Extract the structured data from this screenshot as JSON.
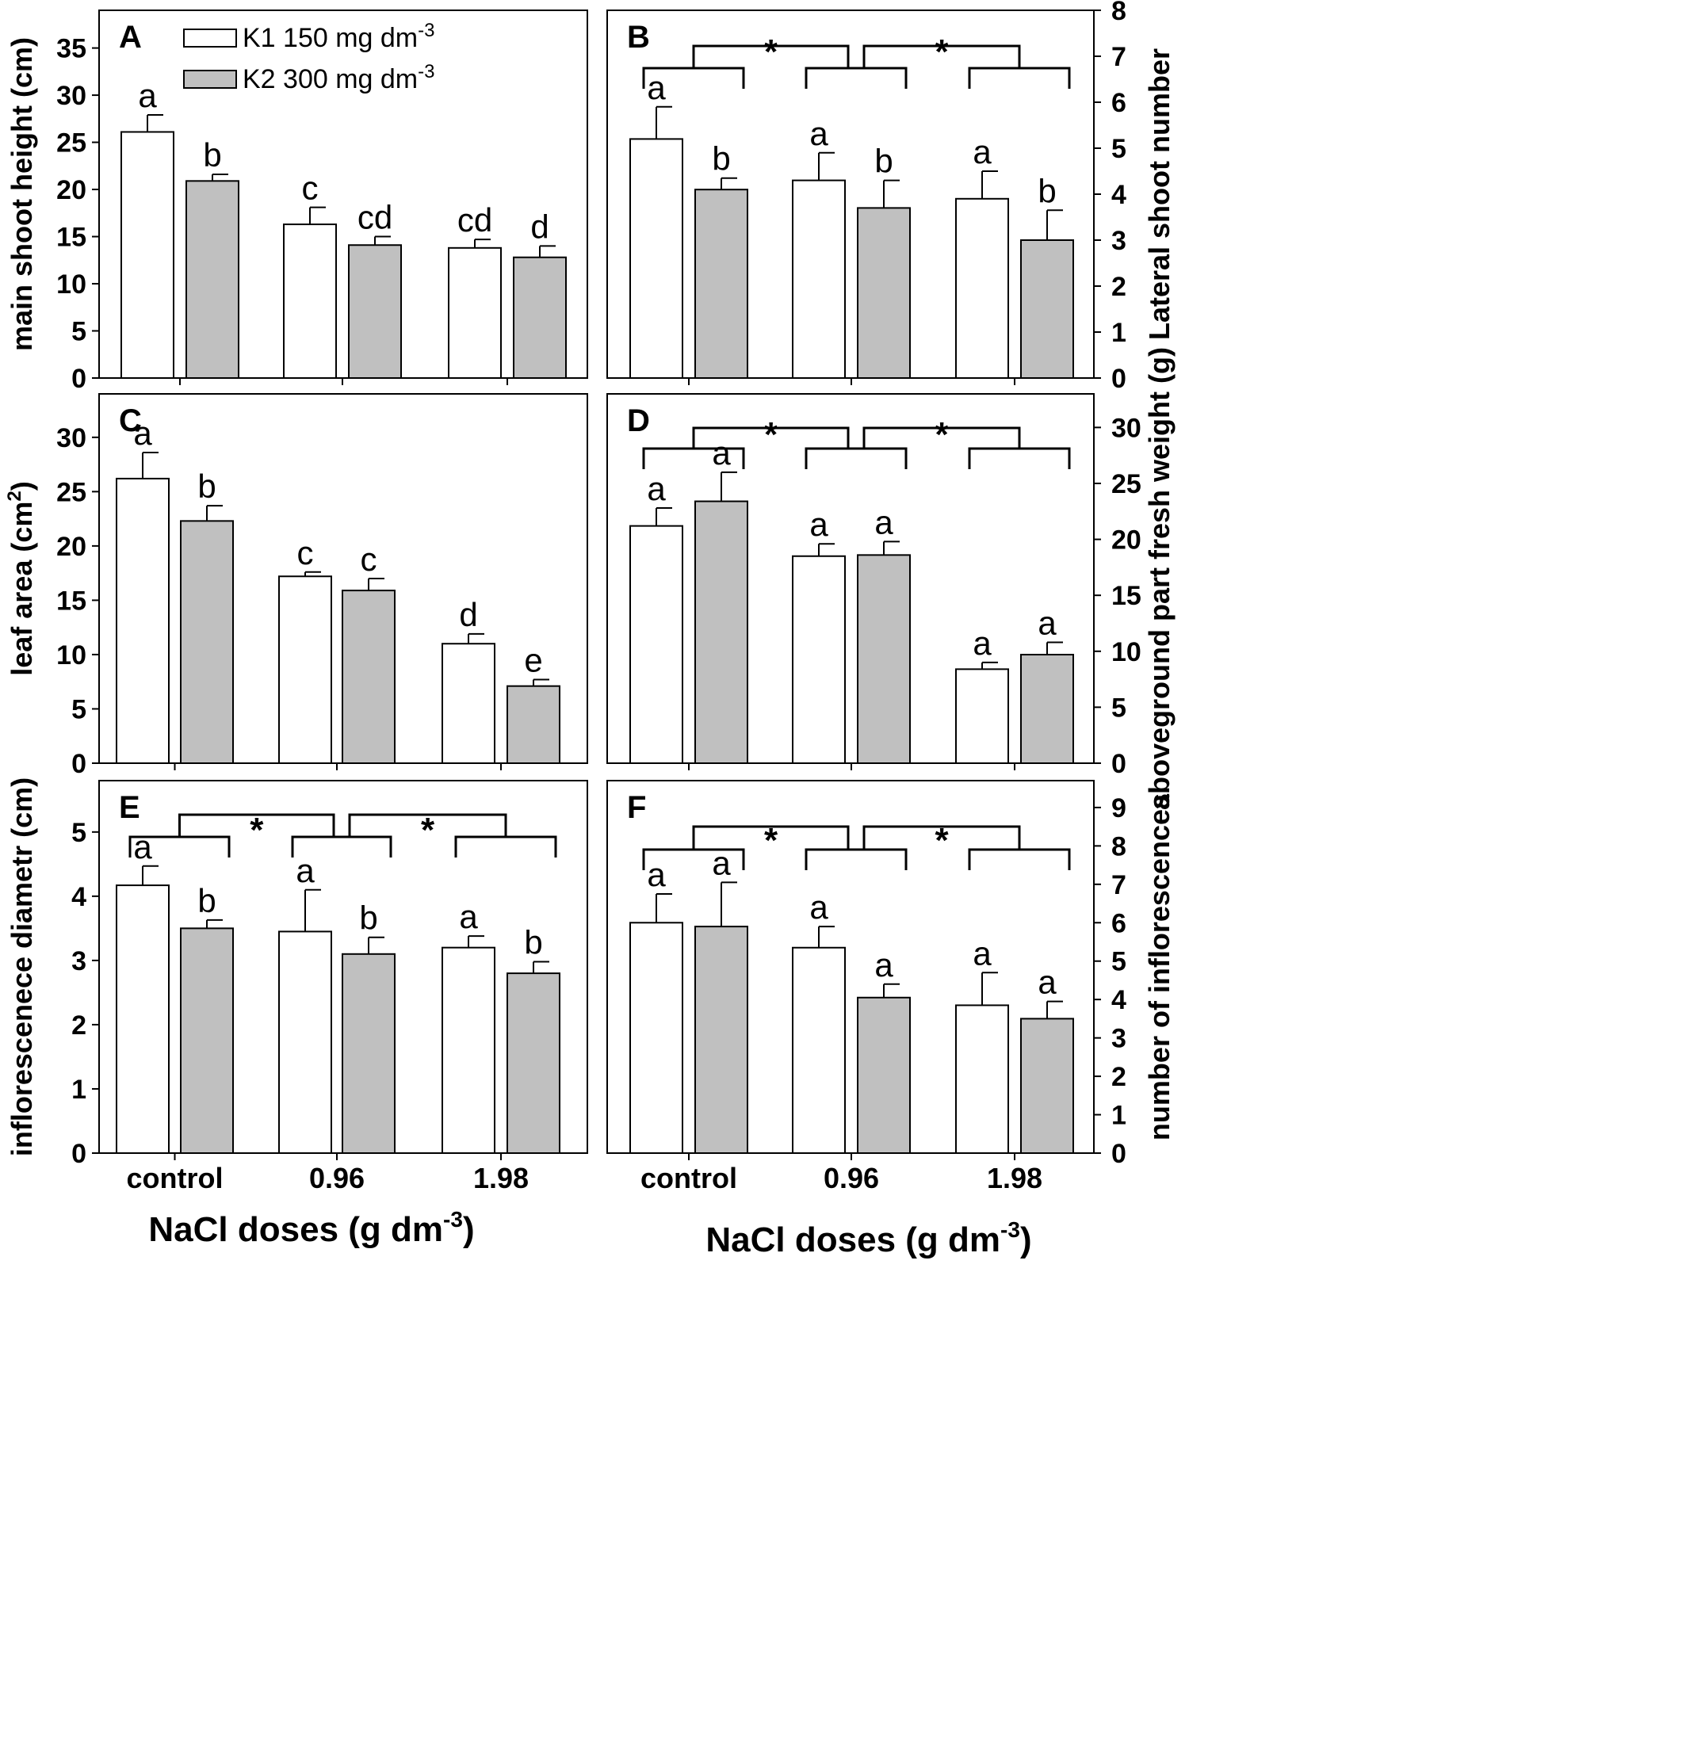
{
  "chart_data": [
    {
      "panel": "A",
      "type": "bar",
      "categories": [
        "control",
        "0.96",
        "1.98"
      ],
      "series": [
        {
          "name": "K1",
          "values": [
            26.1,
            16.3,
            13.8
          ],
          "errors": [
            1.8,
            1.8,
            0.9
          ]
        },
        {
          "name": "K2",
          "values": [
            20.9,
            14.1,
            12.8
          ],
          "errors": [
            0.7,
            0.9,
            1.2
          ]
        }
      ],
      "sig_letters": [
        [
          "a",
          "c",
          "cd"
        ],
        [
          "b",
          "cd",
          "d"
        ]
      ],
      "ylabel": "main shoot height (cm)",
      "ylim": [
        0,
        39
      ],
      "ticks": [
        0,
        5,
        10,
        15,
        20,
        25,
        30,
        35
      ],
      "yaxis_side": "left",
      "brackets": false
    },
    {
      "panel": "B",
      "type": "bar",
      "categories": [
        "control",
        "0.96",
        "1.98"
      ],
      "series": [
        {
          "name": "K1",
          "values": [
            5.2,
            4.3,
            3.9
          ],
          "errors": [
            0.7,
            0.6,
            0.6
          ]
        },
        {
          "name": "K2",
          "values": [
            4.1,
            3.7,
            3.0
          ],
          "errors": [
            0.25,
            0.6,
            0.65
          ]
        }
      ],
      "sig_letters": [
        [
          "a",
          "a",
          "a"
        ],
        [
          "b",
          "b",
          "b"
        ]
      ],
      "ylabel": "Lateral shoot number",
      "ylim": [
        0,
        8
      ],
      "ticks": [
        0,
        1,
        2,
        3,
        4,
        5,
        6,
        7,
        8
      ],
      "yaxis_side": "right",
      "brackets": true
    },
    {
      "panel": "C",
      "type": "bar",
      "categories": [
        "control",
        "0.96",
        "1.98"
      ],
      "series": [
        {
          "name": "K1",
          "values": [
            26.2,
            17.2,
            11.0
          ],
          "errors": [
            2.4,
            0.4,
            0.9
          ]
        },
        {
          "name": "K2",
          "values": [
            22.3,
            15.9,
            7.1
          ],
          "errors": [
            1.4,
            1.1,
            0.6
          ]
        }
      ],
      "sig_letters": [
        [
          "a",
          "c",
          "d"
        ],
        [
          "b",
          "c",
          "e"
        ]
      ],
      "ylabel": "leaf area (cm",
      "ylabel_sup": "2",
      "ylabel_end": ")",
      "ylim": [
        0,
        34
      ],
      "ticks": [
        0,
        5,
        10,
        15,
        20,
        25,
        30
      ],
      "yaxis_side": "left",
      "brackets": false
    },
    {
      "panel": "D",
      "type": "bar",
      "categories": [
        "control",
        "0.96",
        "1.98"
      ],
      "series": [
        {
          "name": "K1",
          "values": [
            21.2,
            18.5,
            8.4
          ],
          "errors": [
            1.6,
            1.1,
            0.6
          ]
        },
        {
          "name": "K2",
          "values": [
            23.4,
            18.6,
            9.7
          ],
          "errors": [
            2.6,
            1.2,
            1.1
          ]
        }
      ],
      "sig_letters": [
        [
          "a",
          "a",
          "a"
        ],
        [
          "a",
          "a",
          "a"
        ]
      ],
      "ylabel": "aboveground part fresh weight (g)",
      "ylim": [
        0,
        33
      ],
      "ticks": [
        0,
        5,
        10,
        15,
        20,
        25,
        30
      ],
      "yaxis_side": "right",
      "brackets": true
    },
    {
      "panel": "E",
      "type": "bar",
      "categories": [
        "control",
        "0.96",
        "1.98"
      ],
      "series": [
        {
          "name": "K1",
          "values": [
            4.17,
            3.45,
            3.2
          ],
          "errors": [
            0.3,
            0.65,
            0.18
          ]
        },
        {
          "name": "K2",
          "values": [
            3.5,
            3.1,
            2.8
          ],
          "errors": [
            0.13,
            0.26,
            0.18
          ]
        }
      ],
      "sig_letters": [
        [
          "a",
          "a",
          "a"
        ],
        [
          "b",
          "b",
          "b"
        ]
      ],
      "ylabel": "inflorescenece diametr (cm)",
      "ylim": [
        0,
        5.8
      ],
      "ticks": [
        0,
        1,
        2,
        3,
        4,
        5
      ],
      "yaxis_side": "left",
      "brackets": true
    },
    {
      "panel": "F",
      "type": "bar",
      "categories": [
        "control",
        "0.96",
        "1.98"
      ],
      "series": [
        {
          "name": "K1",
          "values": [
            6.0,
            5.35,
            3.85
          ],
          "errors": [
            0.75,
            0.55,
            0.85
          ]
        },
        {
          "name": "K2",
          "values": [
            5.9,
            4.05,
            3.5
          ],
          "errors": [
            1.15,
            0.35,
            0.45
          ]
        }
      ],
      "sig_letters": [
        [
          "a",
          "a",
          "a"
        ],
        [
          "a",
          "a",
          "a"
        ]
      ],
      "ylabel": "number of inflorescences",
      "ylim": [
        0,
        9.7
      ],
      "ticks": [
        0,
        1,
        2,
        3,
        4,
        5,
        6,
        7,
        8,
        9
      ],
      "yaxis_side": "right",
      "brackets": true
    }
  ],
  "legend": {
    "items": [
      {
        "name": "K1",
        "label": "K1  150 mg dm",
        "sup": "-3",
        "color": "#ffffff"
      },
      {
        "name": "K2",
        "label": "K2  300 mg dm",
        "sup": "-3",
        "color": "#c0c0c0"
      }
    ]
  },
  "xaxis": {
    "title": "NaCl doses  (g dm",
    "title_sup": "-3",
    "title_end": ")"
  },
  "significance_symbol": "*",
  "colors": {
    "k1": "#ffffff",
    "k2": "#c0c0c0",
    "stroke": "#000000"
  }
}
